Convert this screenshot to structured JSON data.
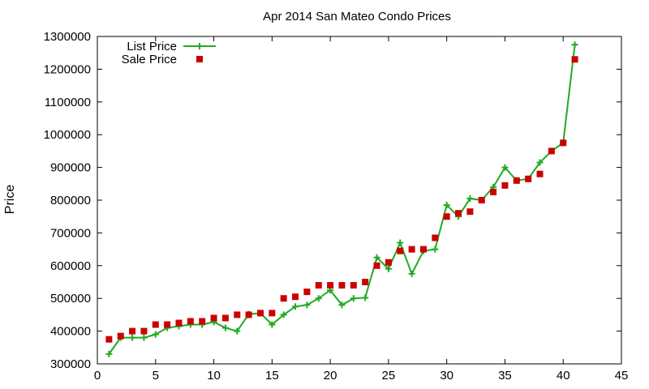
{
  "chart_data": {
    "type": "line",
    "title": "Apr 2014 San Mateo Condo Prices",
    "xlabel": "",
    "ylabel": "Price",
    "xlim": [
      0,
      45
    ],
    "ylim": [
      300000,
      1300000
    ],
    "xticks": [
      0,
      5,
      10,
      15,
      20,
      25,
      30,
      35,
      40,
      45
    ],
    "yticks": [
      300000,
      400000,
      500000,
      600000,
      700000,
      800000,
      900000,
      1000000,
      1100000,
      1200000,
      1300000
    ],
    "grid": false,
    "legend_position": "top-left",
    "x": [
      1,
      2,
      3,
      4,
      5,
      6,
      7,
      8,
      9,
      10,
      11,
      12,
      13,
      14,
      15,
      16,
      17,
      18,
      19,
      20,
      21,
      22,
      23,
      24,
      25,
      26,
      27,
      28,
      29,
      30,
      31,
      32,
      33,
      34,
      35,
      36,
      37,
      38,
      39,
      40,
      41
    ],
    "series": [
      {
        "name": "List Price",
        "style": "linespoints",
        "marker": "plus",
        "color": "#22aa22",
        "values": [
          330000,
          380000,
          380000,
          380000,
          390000,
          410000,
          415000,
          420000,
          420000,
          428000,
          410000,
          400000,
          452000,
          455000,
          420000,
          450000,
          475000,
          480000,
          500000,
          525000,
          480000,
          500000,
          502000,
          625000,
          590000,
          670000,
          575000,
          645000,
          650000,
          785000,
          750000,
          805000,
          800000,
          840000,
          900000,
          860000,
          865000,
          915000,
          950000,
          975000,
          1275000
        ]
      },
      {
        "name": "Sale Price",
        "style": "points",
        "marker": "square",
        "color": "#cc0000",
        "values": [
          375000,
          385000,
          400000,
          400000,
          420000,
          420000,
          425000,
          430000,
          430000,
          440000,
          440000,
          450000,
          450000,
          455000,
          455000,
          500000,
          505000,
          520000,
          540000,
          540000,
          540000,
          540000,
          550000,
          600000,
          610000,
          645000,
          650000,
          650000,
          685000,
          750000,
          760000,
          765000,
          800000,
          825000,
          845000,
          860000,
          865000,
          880000,
          950000,
          975000,
          1230000
        ]
      }
    ]
  }
}
